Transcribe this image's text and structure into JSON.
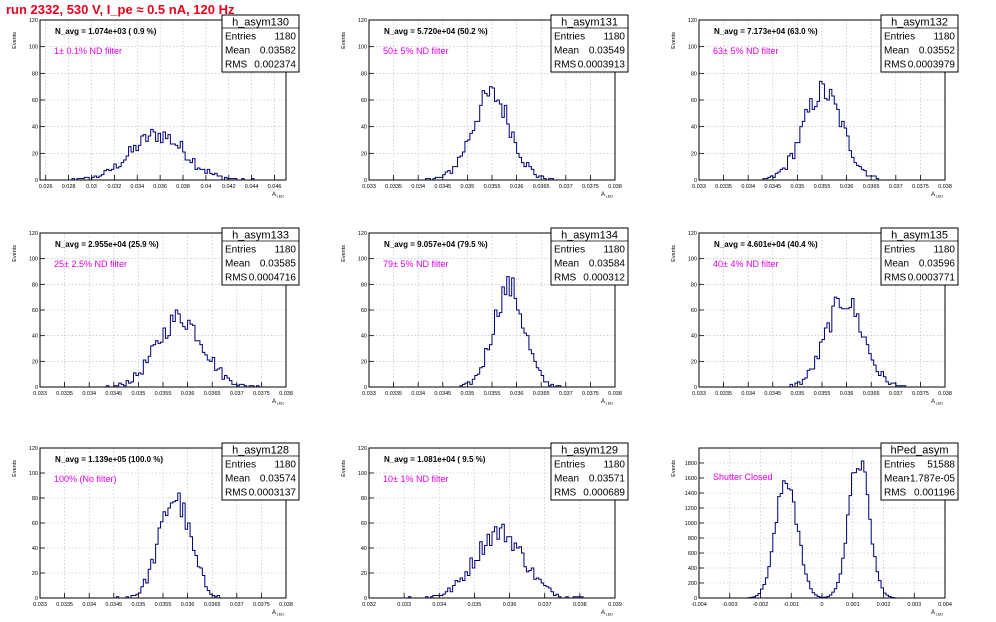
{
  "page": {
    "title": "run 2332,   530 V, I_pe ≈ 0.5 nA, 120 Hz",
    "ylabel": "Events",
    "xlabel": "A",
    "xlabel_sub": "LED",
    "colors": {
      "title": "#e8001c",
      "histogram": "#00007a",
      "filter_note": "#e600e6",
      "grid": "#b8b8b8",
      "axis": "#000000"
    }
  },
  "chart_data": [
    {
      "type": "bar",
      "name": "h_asym130",
      "navg": "N_avg = 1.074e+03 ( 0.9 %)",
      "note": "1± 0.1% ND filter",
      "stats": [
        [
          "Entries",
          "1180"
        ],
        [
          "Mean",
          "0.03582"
        ],
        [
          "RMS",
          "0.002374"
        ]
      ],
      "xlim": [
        0.0255,
        0.047
      ],
      "ylim": [
        0,
        120
      ],
      "xticks": [
        0.026,
        0.028,
        0.03,
        0.032,
        0.034,
        0.036,
        0.038,
        0.04,
        0.042,
        0.044,
        0.046
      ],
      "xtick_labels": [
        "0.026",
        "0.028",
        "0.03",
        "0.032",
        "0.034",
        "0.036",
        "0.038",
        "0.04",
        "0.042",
        "0.044",
        "0.046"
      ],
      "yticks": [
        0,
        20,
        40,
        60,
        80,
        100,
        120
      ],
      "mean": 0.03582,
      "rms": 0.002374,
      "peak": 34
    },
    {
      "type": "bar",
      "name": "h_asym131",
      "navg": "N_avg = 5.720e+04 (50.2 %)",
      "note": "50± 5% ND filter",
      "stats": [
        [
          "Entries",
          "1180"
        ],
        [
          "Mean",
          "0.03549"
        ],
        [
          "RMS",
          "0.0003913"
        ]
      ],
      "xlim": [
        0.033,
        0.038
      ],
      "ylim": [
        0,
        120
      ],
      "xticks": [
        0.033,
        0.0335,
        0.034,
        0.0345,
        0.035,
        0.0355,
        0.036,
        0.0365,
        0.037,
        0.0375,
        0.038
      ],
      "xtick_labels": [
        "0.033",
        "0.0335",
        "0.034",
        "0.0345",
        "0.035",
        "0.0355",
        "0.036",
        "0.0365",
        "0.037",
        "0.0375",
        "0.038"
      ],
      "yticks": [
        0,
        20,
        40,
        60,
        80,
        100,
        120
      ],
      "mean": 0.03549,
      "rms": 0.0003913,
      "peak": 64
    },
    {
      "type": "bar",
      "name": "h_asym132",
      "navg": "N_avg = 7.173e+04 (63.0 %)",
      "note": "63± 5% ND filter",
      "stats": [
        [
          "Entries",
          "1180"
        ],
        [
          "Mean",
          "0.03552"
        ],
        [
          "RMS",
          "0.0003979"
        ]
      ],
      "xlim": [
        0.033,
        0.038
      ],
      "ylim": [
        0,
        120
      ],
      "xticks": [
        0.033,
        0.0335,
        0.034,
        0.0345,
        0.035,
        0.0355,
        0.036,
        0.0365,
        0.037,
        0.0375,
        0.038
      ],
      "xtick_labels": [
        "0.033",
        "0.0335",
        "0.034",
        "0.0345",
        "0.035",
        "0.0355",
        "0.036",
        "0.0365",
        "0.037",
        "0.0375",
        "0.038"
      ],
      "yticks": [
        0,
        20,
        40,
        60,
        80,
        100,
        120
      ],
      "mean": 0.03552,
      "rms": 0.0003979,
      "peak": 66
    },
    {
      "type": "bar",
      "name": "h_asym133",
      "navg": "N_avg = 2.955e+04 (25.9 %)",
      "note": "25± 2.5% ND filter",
      "stats": [
        [
          "Entries",
          "1180"
        ],
        [
          "Mean",
          "0.03585"
        ],
        [
          "RMS",
          "0.0004716"
        ]
      ],
      "xlim": [
        0.033,
        0.038
      ],
      "ylim": [
        0,
        120
      ],
      "xticks": [
        0.033,
        0.0335,
        0.034,
        0.0345,
        0.035,
        0.0355,
        0.036,
        0.0365,
        0.037,
        0.0375,
        0.038
      ],
      "xtick_labels": [
        "0.033",
        "0.0335",
        "0.034",
        "0.0345",
        "0.035",
        "0.0355",
        "0.036",
        "0.0365",
        "0.037",
        "0.0375",
        "0.038"
      ],
      "yticks": [
        0,
        20,
        40,
        60,
        80,
        100,
        120
      ],
      "mean": 0.03585,
      "rms": 0.0004716,
      "peak": 54
    },
    {
      "type": "bar",
      "name": "h_asym134",
      "navg": "N_avg = 9.057e+04 (79.5 %)",
      "note": "79± 5% ND filter",
      "stats": [
        [
          "Entries",
          "1180"
        ],
        [
          "Mean",
          "0.03584"
        ],
        [
          "RMS",
          "0.000312"
        ]
      ],
      "xlim": [
        0.033,
        0.038
      ],
      "ylim": [
        0,
        120
      ],
      "xticks": [
        0.033,
        0.0335,
        0.034,
        0.0345,
        0.035,
        0.0355,
        0.036,
        0.0365,
        0.037,
        0.0375,
        0.038
      ],
      "xtick_labels": [
        "0.033",
        "0.0335",
        "0.034",
        "0.0345",
        "0.035",
        "0.0355",
        "0.036",
        "0.0365",
        "0.037",
        "0.0375",
        "0.038"
      ],
      "yticks": [
        0,
        20,
        40,
        60,
        80,
        100,
        120
      ],
      "mean": 0.03584,
      "rms": 0.000312,
      "peak": 78
    },
    {
      "type": "bar",
      "name": "h_asym135",
      "navg": "N_avg = 4.601e+04 (40.4 %)",
      "note": "40± 4% ND filter",
      "stats": [
        [
          "Entries",
          "1180"
        ],
        [
          "Mean",
          "0.03596"
        ],
        [
          "RMS",
          "0.0003771"
        ]
      ],
      "xlim": [
        0.033,
        0.038
      ],
      "ylim": [
        0,
        120
      ],
      "xticks": [
        0.033,
        0.0335,
        0.034,
        0.0345,
        0.035,
        0.0355,
        0.036,
        0.0365,
        0.037,
        0.0375,
        0.038
      ],
      "xtick_labels": [
        "0.033",
        "0.0335",
        "0.034",
        "0.0345",
        "0.035",
        "0.0355",
        "0.036",
        "0.0365",
        "0.037",
        "0.0375",
        "0.038"
      ],
      "yticks": [
        0,
        20,
        40,
        60,
        80,
        100,
        120
      ],
      "mean": 0.03596,
      "rms": 0.0003771,
      "peak": 68
    },
    {
      "type": "bar",
      "name": "h_asym128",
      "navg": "N_avg = 1.139e+05 (100.0 %)",
      "note": "100% (No filter)",
      "stats": [
        [
          "Entries",
          "1180"
        ],
        [
          "Mean",
          "0.03574"
        ],
        [
          "RMS",
          "0.0003137"
        ]
      ],
      "xlim": [
        0.033,
        0.038
      ],
      "ylim": [
        0,
        120
      ],
      "xticks": [
        0.033,
        0.0335,
        0.034,
        0.0345,
        0.035,
        0.0355,
        0.036,
        0.0365,
        0.037,
        0.0375,
        0.038
      ],
      "xtick_labels": [
        "0.033",
        "0.0335",
        "0.034",
        "0.0345",
        "0.035",
        "0.0355",
        "0.036",
        "0.0365",
        "0.037",
        "0.0375",
        "0.038"
      ],
      "yticks": [
        0,
        20,
        40,
        60,
        80,
        100,
        120
      ],
      "mean": 0.03574,
      "rms": 0.0003137,
      "peak": 80
    },
    {
      "type": "bar",
      "name": "h_asym129",
      "navg": "N_avg = 1.081e+04 ( 9.5 %)",
      "note": "10± 1% ND filter",
      "stats": [
        [
          "Entries",
          "1180"
        ],
        [
          "Mean",
          "0.03571"
        ],
        [
          "RMS",
          "0.000689"
        ]
      ],
      "xlim": [
        0.032,
        0.039
      ],
      "ylim": [
        0,
        120
      ],
      "xticks": [
        0.032,
        0.033,
        0.034,
        0.035,
        0.036,
        0.037,
        0.038,
        0.039
      ],
      "xtick_labels": [
        "0.032",
        "0.033",
        "0.034",
        "0.035",
        "0.036",
        "0.037",
        "0.038",
        "0.039"
      ],
      "yticks": [
        0,
        20,
        40,
        60,
        80,
        100,
        120
      ],
      "mean": 0.03571,
      "rms": 0.000689,
      "peak": 53
    },
    {
      "type": "bar",
      "name": "hPed_asym",
      "navg": "",
      "note": "Shutter Closed",
      "stats": [
        [
          "Entries",
          "51588"
        ],
        [
          "Mean",
          "-1.787e-05"
        ],
        [
          "RMS",
          "0.001196"
        ]
      ],
      "xlim": [
        -0.004,
        0.004
      ],
      "ylim": [
        0,
        2000
      ],
      "xticks": [
        -0.004,
        -0.003,
        -0.002,
        -0.001,
        0,
        0.001,
        0.002,
        0.003,
        0.004
      ],
      "xtick_labels": [
        "-0.004",
        "-0.003",
        "-0.002",
        "-0.001",
        "0",
        "0.001",
        "0.002",
        "0.003",
        "0.004"
      ],
      "yticks": [
        0,
        200,
        400,
        600,
        800,
        1000,
        1200,
        1400,
        1600,
        1800
      ],
      "bimodal": [
        {
          "mean": -0.00115,
          "sigma": 0.00035,
          "peak": 1600
        },
        {
          "mean": 0.0012,
          "sigma": 0.00033,
          "peak": 1850
        }
      ]
    }
  ]
}
